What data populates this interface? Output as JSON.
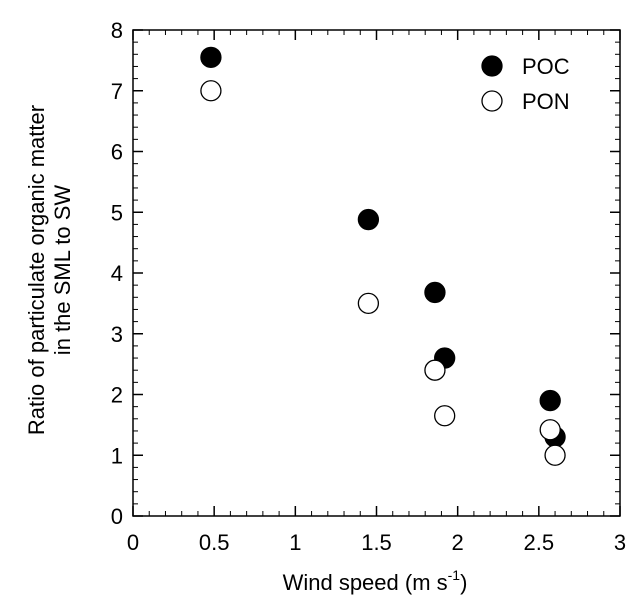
{
  "chart_data": {
    "type": "scatter",
    "title": "",
    "xlabel": "Wind speed (m s",
    "xlabel_sup": "-1",
    "xlabel_end": ")",
    "ylabel_lines": [
      "Ratio of particulate organic matter",
      "in the SML to SW"
    ],
    "xlim": [
      0,
      3
    ],
    "ylim": [
      0,
      8
    ],
    "x_ticks": [
      0,
      0.5,
      1,
      1.5,
      2,
      2.5,
      3
    ],
    "x_tick_labels": [
      "0",
      "0.5",
      "1",
      "1.5",
      "2",
      "2.5",
      "3"
    ],
    "y_ticks": [
      0,
      1,
      2,
      3,
      4,
      5,
      6,
      7,
      8
    ],
    "y_tick_labels": [
      "0",
      "1",
      "2",
      "3",
      "4",
      "5",
      "6",
      "7",
      "8"
    ],
    "grid": false,
    "legend_position": "top-right",
    "series": [
      {
        "name": "POC",
        "marker": "filled-circle",
        "color": "#000000",
        "points": [
          {
            "x": 0.48,
            "y": 7.55
          },
          {
            "x": 1.45,
            "y": 4.88
          },
          {
            "x": 1.86,
            "y": 3.68
          },
          {
            "x": 1.92,
            "y": 2.6
          },
          {
            "x": 2.57,
            "y": 1.9
          },
          {
            "x": 2.6,
            "y": 1.3
          }
        ]
      },
      {
        "name": "PON",
        "marker": "open-circle",
        "color": "#000000",
        "points": [
          {
            "x": 0.48,
            "y": 7.0
          },
          {
            "x": 1.45,
            "y": 3.5
          },
          {
            "x": 1.86,
            "y": 2.4
          },
          {
            "x": 1.92,
            "y": 1.65
          },
          {
            "x": 2.57,
            "y": 1.42
          },
          {
            "x": 2.6,
            "y": 1.0
          }
        ]
      }
    ]
  }
}
